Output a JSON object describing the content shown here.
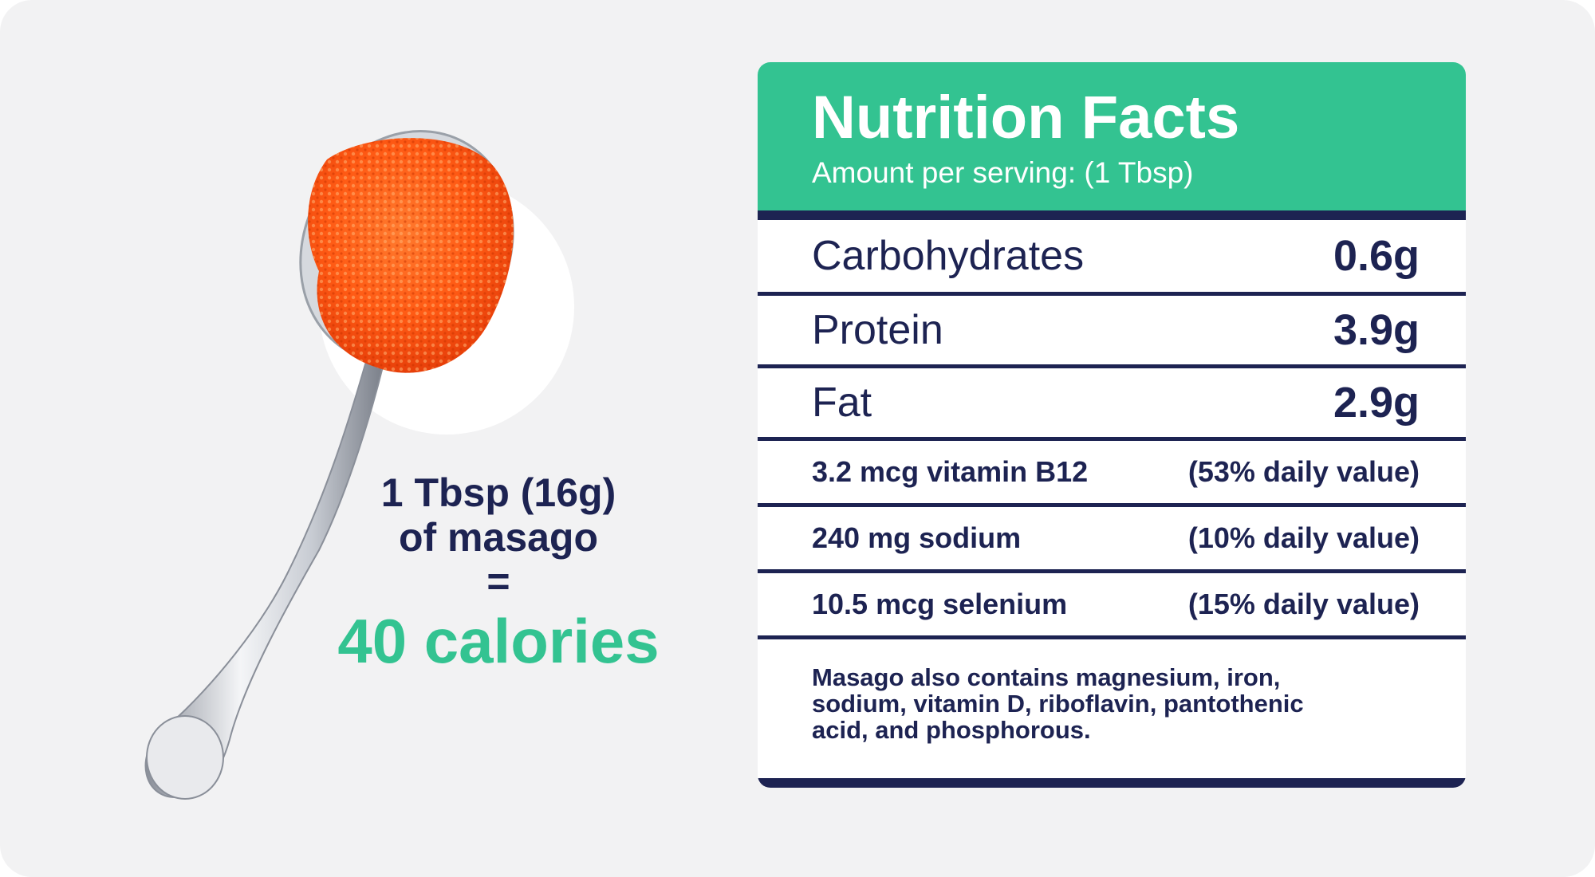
{
  "serving": {
    "line1": "1 Tbsp (16g)",
    "line2": "of masago",
    "equals": "=",
    "calories": "40 calories"
  },
  "nutrition": {
    "title": "Nutrition Facts",
    "subtitle": "Amount per serving: (1 Tbsp)",
    "macros": [
      {
        "label": "Carbohydrates",
        "value": "0.6g"
      },
      {
        "label": "Protein",
        "value": "3.9g"
      },
      {
        "label": "Fat",
        "value": "2.9g"
      }
    ],
    "micros": [
      {
        "label": "3.2 mcg vitamin B12",
        "value": "(53% daily value)"
      },
      {
        "label": "240 mg sodium",
        "value": "(10% daily value)"
      },
      {
        "label": "10.5 mcg selenium",
        "value": "(15% daily value)"
      }
    ],
    "note": "Masago also contains magnesium, iron, sodium, vitamin D, riboflavin, pantothenic acid, and phosphorous."
  },
  "colors": {
    "accent_green": "#33c391",
    "navy": "#1d2352",
    "background": "#f2f2f3",
    "roe_orange": "#ff5a1a"
  },
  "image": {
    "subject": "spoon-of-masago-roe"
  }
}
